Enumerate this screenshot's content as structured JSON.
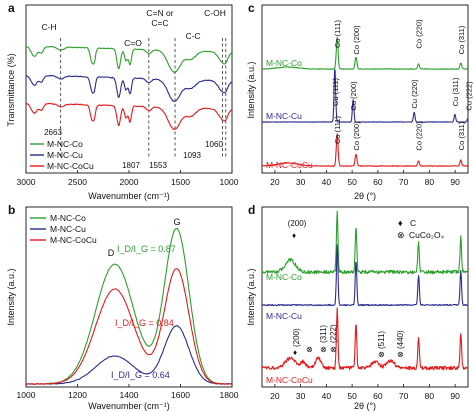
{
  "chart_data": [
    {
      "panel": "a",
      "type": "line",
      "xlabel": "Wavenumber (cm⁻¹)",
      "ylabel": "Transmittance (%)",
      "xlim": [
        3000,
        1000
      ],
      "x_ticks": [
        "3000",
        "2500",
        "2000",
        "1500",
        "1000"
      ],
      "reversed_x": true,
      "legend": "bottom-left",
      "series": [
        {
          "name": "M-NC-Co",
          "color": "#2ca02c",
          "offset": 2.0
        },
        {
          "name": "M-NC-Cu",
          "color": "#2b2b8f",
          "offset": 1.0
        },
        {
          "name": "M-NC-CoCu",
          "color": "#e31a1c",
          "offset": 0.0
        }
      ],
      "annotations": [
        {
          "label": "C-H",
          "x": 2663
        },
        {
          "label": "C=O",
          "x": 1807
        },
        {
          "label": "C=N or C=C",
          "x": 1553
        },
        {
          "label": "C-C",
          "x": 1093
        },
        {
          "label": "C-OH",
          "x": 1060
        }
      ],
      "marked_wavenumbers": [
        "2663",
        "1807",
        "1553",
        "1093",
        "1060"
      ]
    },
    {
      "panel": "b",
      "type": "line",
      "xlabel": "Wavenumber (cm⁻¹)",
      "ylabel": "Intensity (a.u.)",
      "xlim": [
        1000,
        1800
      ],
      "x_ticks": [
        "1000",
        "1200",
        "1400",
        "1600",
        "1800"
      ],
      "legend": "top-left",
      "series": [
        {
          "name": "M-NC-Co",
          "color": "#2ca02c",
          "d_peak": 1345,
          "g_peak": 1585,
          "id_ig": "I_D/I_G = 0.87"
        },
        {
          "name": "M-NC-Cu",
          "color": "#2b2b8f",
          "d_peak": 1345,
          "g_peak": 1585,
          "id_ig": "I_D/I_G = 0.64"
        },
        {
          "name": "M-NC-CoCu",
          "color": "#e31a1c",
          "d_peak": 1345,
          "g_peak": 1585,
          "id_ig": "I_D/I_G = 0.84"
        }
      ],
      "peak_labels": [
        "D",
        "G"
      ]
    },
    {
      "panel": "c",
      "type": "line",
      "xlabel": "2θ (°)",
      "ylabel": "Intensity (a.u.)",
      "xlim": [
        15,
        95
      ],
      "x_ticks": [
        "20",
        "30",
        "40",
        "50",
        "60",
        "70",
        "80",
        "90"
      ],
      "series": [
        {
          "name": "M-NC-Co",
          "color": "#2ca02c",
          "peaks": [
            44.2,
            51.5,
            75.8,
            92.2
          ]
        },
        {
          "name": "M-NC-Cu",
          "color": "#2b2b8f",
          "peaks": [
            43.3,
            50.4,
            74.1,
            89.9,
            95.1
          ]
        },
        {
          "name": "M-NC-CoCu",
          "color": "#e31a1c",
          "peaks": [
            44.2,
            51.5,
            75.8,
            92.2
          ]
        }
      ],
      "peak_labels": [
        {
          "text": "Co (111)",
          "x": 44.2
        },
        {
          "text": "Co (200)",
          "x": 51.5
        },
        {
          "text": "Co (220)",
          "x": 75.8
        },
        {
          "text": "Co (311)",
          "x": 92.2
        },
        {
          "text": "Cu (111)",
          "x": 43.3
        },
        {
          "text": "Cu (200)",
          "x": 50.4
        },
        {
          "text": "Cu (220)",
          "x": 74.1
        },
        {
          "text": "Cu (311)",
          "x": 89.9
        },
        {
          "text": "Cu (222)",
          "x": 95.1
        }
      ]
    },
    {
      "panel": "d",
      "type": "line",
      "xlabel": "2θ (°)",
      "ylabel": "Intensity (a.u.)",
      "xlim": [
        15,
        95
      ],
      "x_ticks": [
        "20",
        "30",
        "40",
        "50",
        "60",
        "70",
        "80",
        "90"
      ],
      "legend_items": [
        "C",
        "CuCo₂O₄"
      ],
      "series": [
        {
          "name": "M-NC-Co",
          "color": "#2ca02c"
        },
        {
          "name": "M-NC-Cu",
          "color": "#2b2b8f"
        },
        {
          "name": "M-NC-CoCu",
          "color": "#e31a1c"
        }
      ],
      "peak_labels": [
        "(200)",
        "(200)",
        "(311)",
        "(222)",
        "(511)",
        "(440)"
      ]
    }
  ],
  "panel_letters": [
    "a",
    "b",
    "c",
    "d"
  ]
}
